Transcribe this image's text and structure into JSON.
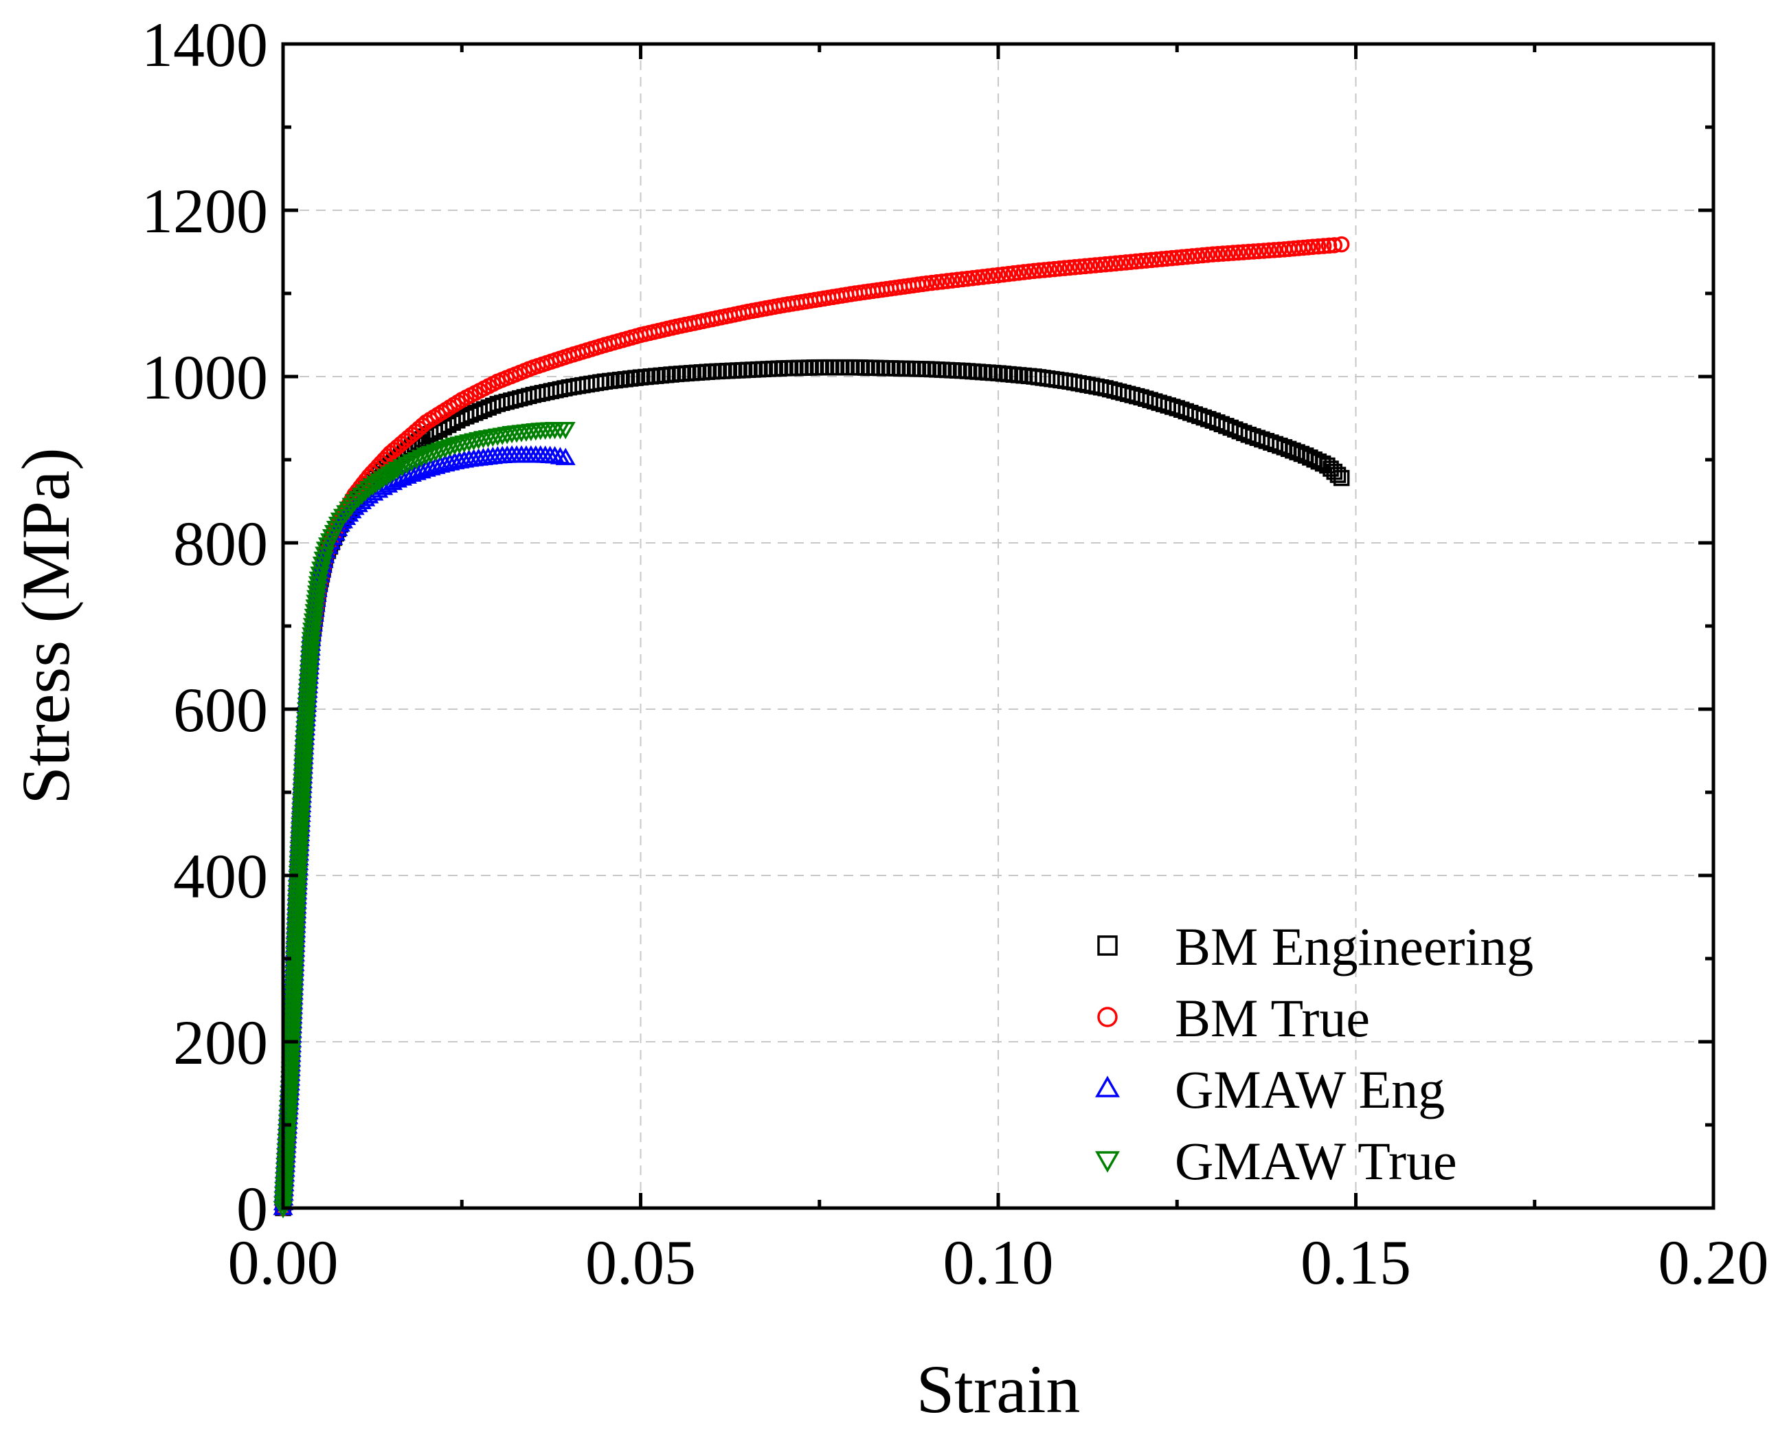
{
  "chart_data": {
    "type": "scatter",
    "title": "",
    "xlabel": "Strain",
    "ylabel": "Stress (MPa)",
    "xlim": [
      0,
      0.2
    ],
    "ylim": [
      0,
      1400
    ],
    "xticks": [
      "0.00",
      "0.05",
      "0.10",
      "0.15",
      "0.20"
    ],
    "yticks": [
      "0",
      "200",
      "400",
      "600",
      "800",
      "1000",
      "1200",
      "1400"
    ],
    "grid": true,
    "legend_position": "bottom-right",
    "series": [
      {
        "name": "BM Engineering",
        "marker": "square",
        "color": "#000000",
        "points": [
          [
            0,
            0
          ],
          [
            0.001,
            150
          ],
          [
            0.002,
            380
          ],
          [
            0.003,
            560
          ],
          [
            0.004,
            680
          ],
          [
            0.005,
            745
          ],
          [
            0.006,
            785
          ],
          [
            0.008,
            822
          ],
          [
            0.01,
            850
          ],
          [
            0.012,
            870
          ],
          [
            0.015,
            895
          ],
          [
            0.018,
            915
          ],
          [
            0.02,
            928
          ],
          [
            0.025,
            950
          ],
          [
            0.03,
            967
          ],
          [
            0.035,
            978
          ],
          [
            0.04,
            987
          ],
          [
            0.045,
            994
          ],
          [
            0.05,
            999
          ],
          [
            0.055,
            1003
          ],
          [
            0.06,
            1006
          ],
          [
            0.065,
            1008
          ],
          [
            0.07,
            1010
          ],
          [
            0.075,
            1011
          ],
          [
            0.08,
            1011
          ],
          [
            0.085,
            1010
          ],
          [
            0.09,
            1009
          ],
          [
            0.095,
            1007
          ],
          [
            0.1,
            1004
          ],
          [
            0.105,
            1000
          ],
          [
            0.11,
            994
          ],
          [
            0.115,
            986
          ],
          [
            0.12,
            975
          ],
          [
            0.125,
            962
          ],
          [
            0.13,
            947
          ],
          [
            0.135,
            930
          ],
          [
            0.14,
            915
          ],
          [
            0.143,
            905
          ],
          [
            0.146,
            893
          ],
          [
            0.148,
            878
          ]
        ]
      },
      {
        "name": "BM True",
        "marker": "circle",
        "color": "#ff0000",
        "points": [
          [
            0,
            0
          ],
          [
            0.001,
            150
          ],
          [
            0.002,
            380
          ],
          [
            0.003,
            560
          ],
          [
            0.004,
            680
          ],
          [
            0.005,
            745
          ],
          [
            0.006,
            785
          ],
          [
            0.008,
            828
          ],
          [
            0.01,
            858
          ],
          [
            0.012,
            880
          ],
          [
            0.015,
            908
          ],
          [
            0.018,
            930
          ],
          [
            0.02,
            945
          ],
          [
            0.025,
            972
          ],
          [
            0.03,
            994
          ],
          [
            0.035,
            1011
          ],
          [
            0.04,
            1025
          ],
          [
            0.045,
            1038
          ],
          [
            0.05,
            1050
          ],
          [
            0.055,
            1060
          ],
          [
            0.06,
            1069
          ],
          [
            0.065,
            1078
          ],
          [
            0.07,
            1086
          ],
          [
            0.075,
            1093
          ],
          [
            0.08,
            1100
          ],
          [
            0.085,
            1106
          ],
          [
            0.09,
            1112
          ],
          [
            0.095,
            1117
          ],
          [
            0.1,
            1122
          ],
          [
            0.105,
            1127
          ],
          [
            0.11,
            1131
          ],
          [
            0.115,
            1135
          ],
          [
            0.12,
            1139
          ],
          [
            0.125,
            1143
          ],
          [
            0.13,
            1147
          ],
          [
            0.135,
            1150
          ],
          [
            0.14,
            1153
          ],
          [
            0.144,
            1156
          ],
          [
            0.147,
            1158
          ],
          [
            0.148,
            1159
          ]
        ]
      },
      {
        "name": "GMAW Eng",
        "marker": "triangle-up",
        "color": "#0000ff",
        "points": [
          [
            0,
            0
          ],
          [
            0.001,
            150
          ],
          [
            0.002,
            380
          ],
          [
            0.003,
            560
          ],
          [
            0.004,
            690
          ],
          [
            0.005,
            755
          ],
          [
            0.006,
            790
          ],
          [
            0.008,
            822
          ],
          [
            0.01,
            842
          ],
          [
            0.012,
            856
          ],
          [
            0.014,
            866
          ],
          [
            0.016,
            875
          ],
          [
            0.018,
            882
          ],
          [
            0.02,
            888
          ],
          [
            0.022,
            893
          ],
          [
            0.024,
            897
          ],
          [
            0.026,
            900
          ],
          [
            0.028,
            902
          ],
          [
            0.03,
            904
          ],
          [
            0.032,
            905
          ],
          [
            0.034,
            905
          ],
          [
            0.036,
            905
          ],
          [
            0.038,
            904
          ],
          [
            0.0395,
            902
          ]
        ]
      },
      {
        "name": "GMAW True",
        "marker": "triangle-down",
        "color": "#008000",
        "points": [
          [
            0,
            0
          ],
          [
            0.001,
            150
          ],
          [
            0.002,
            380
          ],
          [
            0.003,
            560
          ],
          [
            0.004,
            690
          ],
          [
            0.005,
            757
          ],
          [
            0.006,
            793
          ],
          [
            0.008,
            828
          ],
          [
            0.01,
            850
          ],
          [
            0.012,
            866
          ],
          [
            0.014,
            878
          ],
          [
            0.016,
            889
          ],
          [
            0.018,
            898
          ],
          [
            0.02,
            906
          ],
          [
            0.022,
            912
          ],
          [
            0.024,
            918
          ],
          [
            0.026,
            922
          ],
          [
            0.028,
            926
          ],
          [
            0.03,
            929
          ],
          [
            0.032,
            932
          ],
          [
            0.034,
            934
          ],
          [
            0.036,
            936
          ],
          [
            0.038,
            937
          ],
          [
            0.0395,
            937
          ]
        ]
      }
    ]
  }
}
